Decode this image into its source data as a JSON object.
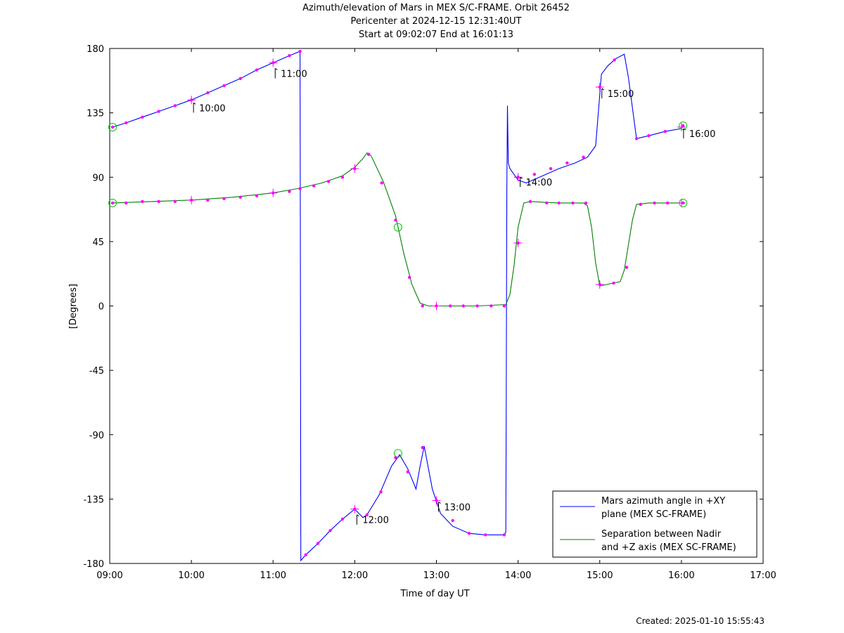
{
  "title": {
    "line1": "Azimuth/elevation of Mars in MEX S/C-FRAME.  Orbit 26452",
    "line2": "Pericenter at 2024-12-15 12:31:40UT",
    "line3": "Start at 09:02:07 End at 16:01:13"
  },
  "credit": "Created: 2025-01-10 15:55:43",
  "colors": {
    "azimuth": "#0000ff",
    "separation": "#008000",
    "markers": "#ff00ff",
    "start_end_circles": "#00cc00"
  },
  "chart_data": {
    "type": "line",
    "title": "Azimuth/elevation of Mars in MEX S/C-FRAME.  Orbit 26452",
    "xlabel": "Time of day UT",
    "ylabel": "[Degrees]",
    "xlim": [
      9.0,
      17.0
    ],
    "ylim": [
      -180,
      180
    ],
    "x_ticks": [
      9,
      10,
      11,
      12,
      13,
      14,
      15,
      16,
      17
    ],
    "x_tick_labels": [
      "09:00",
      "10:00",
      "11:00",
      "12:00",
      "13:00",
      "14:00",
      "15:00",
      "16:00",
      "17:00"
    ],
    "y_ticks": [
      -180,
      -135,
      -90,
      -45,
      0,
      45,
      90,
      135,
      180
    ],
    "y_tick_labels": [
      "-180",
      "-135",
      "-90",
      "-45",
      "0",
      "45",
      "90",
      "135",
      "180"
    ],
    "grid": false,
    "legend_position": "bottom-right",
    "hour_annotations": [
      {
        "label": "10:00",
        "x": 10.0,
        "y": 143
      },
      {
        "label": "11:00",
        "x": 11.0,
        "y": 167
      },
      {
        "label": "12:00",
        "x": 12.0,
        "y": -145
      },
      {
        "label": "13:00",
        "x": 13.0,
        "y": -136
      },
      {
        "label": "14:00",
        "x": 14.0,
        "y": 91
      },
      {
        "label": "15:00",
        "x": 15.0,
        "y": 153
      },
      {
        "label": "16:00",
        "x": 16.0,
        "y": 125
      }
    ],
    "series": [
      {
        "name": "Mars azimuth angle in +XY plane (MEX SC-FRAME)",
        "legend_lines": [
          "Mars azimuth angle in +XY",
          "plane (MEX SC-FRAME)"
        ],
        "color": "#0000ff",
        "x": [
          9.035,
          9.2,
          9.4,
          9.6,
          9.8,
          10.0,
          10.2,
          10.4,
          10.6,
          10.8,
          11.0,
          11.2,
          11.33,
          11.335,
          11.34,
          11.4,
          11.55,
          11.7,
          11.85,
          12.0,
          12.1,
          12.15,
          12.3,
          12.45,
          12.55,
          12.65,
          12.75,
          12.8,
          12.85,
          12.95,
          13.05,
          13.2,
          13.4,
          13.6,
          13.83,
          13.85,
          13.855,
          13.862,
          13.87,
          13.88,
          13.9,
          14.0,
          14.1,
          14.3,
          14.5,
          14.7,
          14.85,
          14.95,
          15.02,
          15.1,
          15.2,
          15.3,
          15.35,
          15.45,
          15.6,
          15.8,
          16.0,
          16.02
        ],
        "y": [
          125,
          128,
          132,
          136,
          140,
          144,
          149,
          154,
          159,
          165,
          170,
          175,
          178,
          0,
          -178,
          -174,
          -166,
          -157,
          -149,
          -142,
          -148,
          -146,
          -132,
          -112,
          -104,
          -114,
          -128,
          -112,
          -98,
          -128,
          -145,
          -154,
          -159,
          -160,
          -160,
          -158,
          -60,
          80,
          140,
          100,
          96,
          88,
          86,
          91,
          96,
          100,
          104,
          112,
          162,
          168,
          173,
          176,
          160,
          117,
          119,
          122,
          124,
          126
        ],
        "markers_x": [
          9.035,
          9.2,
          9.4,
          9.6,
          9.8,
          10.0,
          10.2,
          10.4,
          10.6,
          10.8,
          11.0,
          11.2,
          11.33,
          11.4,
          11.55,
          11.7,
          11.85,
          12.0,
          12.15,
          12.32,
          12.5,
          12.65,
          12.83,
          13.0,
          13.2,
          13.4,
          13.6,
          13.83,
          14.0,
          14.2,
          14.4,
          14.6,
          14.8,
          15.0,
          15.18,
          15.45,
          15.6,
          15.8,
          16.02
        ],
        "markers_y": [
          125,
          128,
          132,
          136,
          140,
          144,
          149,
          154,
          159,
          165,
          170,
          175,
          178,
          -174,
          -166,
          -157,
          -149,
          -142,
          -146,
          -130,
          -106,
          -116,
          -99,
          -136,
          -150,
          -159,
          -160,
          -160,
          90,
          92,
          96,
          100,
          104,
          153,
          172,
          117,
          119,
          122,
          126
        ]
      },
      {
        "name": "Separation between Nadir and +Z axis (MEX SC-FRAME)",
        "legend_lines": [
          "Separation between Nadir",
          "and +Z axis (MEX SC-FRAME)"
        ],
        "color": "#008000",
        "x": [
          9.035,
          9.5,
          10.0,
          10.5,
          11.0,
          11.3,
          11.6,
          11.85,
          12.0,
          12.1,
          12.15,
          12.2,
          12.35,
          12.5,
          12.6,
          12.7,
          12.8,
          12.9,
          13.0,
          13.5,
          13.85,
          13.9,
          13.95,
          14.0,
          14.07,
          14.15,
          14.5,
          14.8,
          14.85,
          14.9,
          14.95,
          15.0,
          15.25,
          15.3,
          15.4,
          15.45,
          15.6,
          15.8,
          16.02
        ],
        "y": [
          72,
          73,
          74,
          76,
          79,
          82,
          86,
          91,
          97,
          103,
          107,
          105,
          87,
          63,
          37,
          15,
          2,
          0,
          0,
          0,
          1,
          8,
          28,
          55,
          72,
          73,
          72,
          72,
          70,
          55,
          30,
          14,
          17,
          25,
          60,
          71,
          72,
          72,
          72
        ],
        "markers_x": [
          9.035,
          9.2,
          9.4,
          9.6,
          9.8,
          10.0,
          10.2,
          10.4,
          10.6,
          10.8,
          11.0,
          11.2,
          11.33,
          11.5,
          11.68,
          11.85,
          12.0,
          12.17,
          12.33,
          12.5,
          12.67,
          12.83,
          13.0,
          13.17,
          13.33,
          13.5,
          13.67,
          13.83,
          14.0,
          14.15,
          14.35,
          14.5,
          14.67,
          14.83,
          15.0,
          15.17,
          15.33,
          15.5,
          15.67,
          15.83,
          16.02
        ],
        "markers_y": [
          72,
          72,
          73,
          73,
          73,
          74,
          74,
          75,
          76,
          77,
          79,
          80,
          82,
          84,
          87,
          90,
          96,
          106,
          86,
          60,
          20,
          0,
          0,
          0,
          0,
          0,
          0,
          0,
          44,
          73,
          72,
          72,
          72,
          72,
          15,
          16,
          27,
          71,
          72,
          72,
          72
        ]
      }
    ],
    "start_circles": [
      {
        "x": 9.035,
        "y": 125
      },
      {
        "x": 16.02,
        "y": 126
      },
      {
        "x": 9.035,
        "y": 72
      },
      {
        "x": 16.02,
        "y": 72
      },
      {
        "x": 12.53,
        "y": 55
      },
      {
        "x": 12.53,
        "y": -103
      }
    ],
    "hour_crosses": [
      {
        "x": 10.0,
        "y": 144
      },
      {
        "x": 11.0,
        "y": 170
      },
      {
        "x": 12.0,
        "y": -142
      },
      {
        "x": 13.0,
        "y": -136
      },
      {
        "x": 14.0,
        "y": 90
      },
      {
        "x": 15.0,
        "y": 153
      },
      {
        "x": 16.0,
        "y": 125
      },
      {
        "x": 10.0,
        "y": 74
      },
      {
        "x": 11.0,
        "y": 79
      },
      {
        "x": 12.0,
        "y": 96
      },
      {
        "x": 13.0,
        "y": 0
      },
      {
        "x": 14.0,
        "y": 44
      },
      {
        "x": 15.0,
        "y": 15
      },
      {
        "x": 16.0,
        "y": 72
      }
    ]
  }
}
